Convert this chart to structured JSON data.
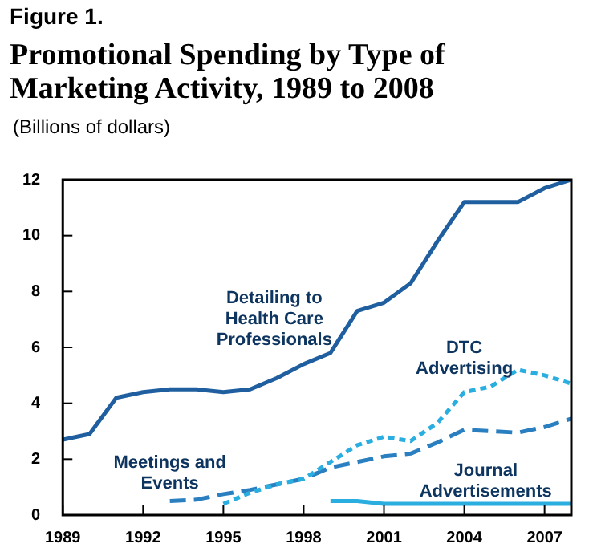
{
  "chart_data": {
    "type": "line",
    "title": "Promotional Spending by Type of Marketing Activity, 1989 to 2008",
    "ylabel": "(Billions of dollars)",
    "annotations": [
      "Figure 1."
    ],
    "x": [
      1989,
      1990,
      1991,
      1992,
      1993,
      1994,
      1995,
      1996,
      1997,
      1998,
      1999,
      2000,
      2001,
      2002,
      2003,
      2004,
      2005,
      2006,
      2007,
      2008
    ],
    "series": [
      {
        "name": "Detailing to Health Care Professionals",
        "color": "#1f5f9f",
        "line_style": "solid",
        "values": [
          2.7,
          2.9,
          4.2,
          4.4,
          4.5,
          4.5,
          4.4,
          4.5,
          4.9,
          5.4,
          5.8,
          7.3,
          7.6,
          8.3,
          9.8,
          11.2,
          11.2,
          11.2,
          11.7,
          12.0
        ]
      },
      {
        "name": "DTC Advertising",
        "color": "#2aaee0",
        "line_style": "dotted",
        "values": [
          null,
          null,
          null,
          null,
          null,
          null,
          0.4,
          0.8,
          1.1,
          1.3,
          1.9,
          2.5,
          2.8,
          2.65,
          3.3,
          4.4,
          4.6,
          5.2,
          5.0,
          4.7
        ]
      },
      {
        "name": "Meetings and Events",
        "color": "#2a7fc0",
        "line_style": "dashed",
        "values": [
          null,
          null,
          null,
          null,
          0.5,
          0.55,
          0.75,
          0.9,
          1.1,
          1.3,
          1.7,
          1.9,
          2.1,
          2.2,
          2.6,
          3.05,
          3.0,
          2.95,
          3.15,
          3.45
        ]
      },
      {
        "name": "Journal Advertisements",
        "color": "#2aaee0",
        "line_style": "solid",
        "values": [
          null,
          null,
          null,
          null,
          null,
          null,
          null,
          null,
          null,
          null,
          0.5,
          0.5,
          0.4,
          0.4,
          0.4,
          0.4,
          0.4,
          0.4,
          0.4,
          0.4
        ]
      }
    ],
    "xlim": [
      1989,
      2008
    ],
    "xticks": [
      1989,
      1992,
      1995,
      1998,
      2001,
      2004,
      2007
    ],
    "ylim": [
      0,
      12
    ],
    "yticks": [
      0,
      2,
      4,
      6,
      8,
      10,
      12
    ],
    "grid": false,
    "legend": false
  }
}
